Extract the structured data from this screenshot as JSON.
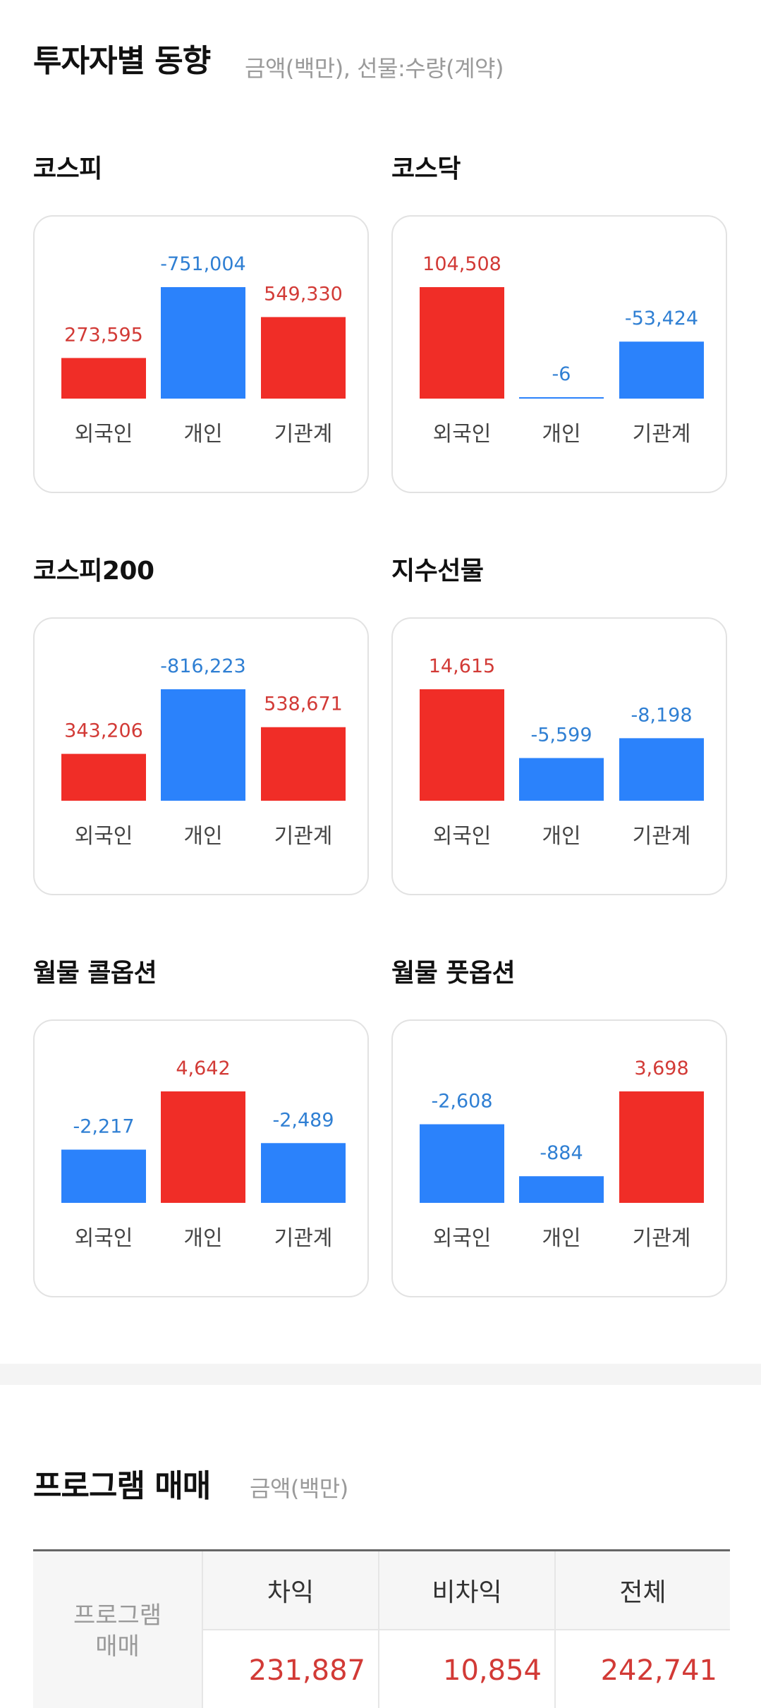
{
  "investor_section": {
    "title": "투자자별 동향",
    "subtitle": "금액(백만), 선물:수량(계약)"
  },
  "colors": {
    "positive": "#f02d27",
    "negative": "#2b82fb",
    "positive_text": "#d23a36",
    "negative_text": "#2f7fd3"
  },
  "investor_labels": [
    "외국인",
    "개인",
    "기관계"
  ],
  "markets": [
    {
      "name": "코스피",
      "values": [
        273595,
        -751004,
        549330
      ],
      "labels": [
        "273,595",
        "-751,004",
        "549,330"
      ]
    },
    {
      "name": "코스닥",
      "values": [
        104508,
        -6,
        -53424
      ],
      "labels": [
        "104,508",
        "-6",
        "-53,424"
      ]
    },
    {
      "name": "코스피200",
      "values": [
        343206,
        -816223,
        538671
      ],
      "labels": [
        "343,206",
        "-816,223",
        "538,671"
      ]
    },
    {
      "name": "지수선물",
      "values": [
        14615,
        -5599,
        -8198
      ],
      "labels": [
        "14,615",
        "-5,599",
        "-8,198"
      ]
    },
    {
      "name": "월물 콜옵션",
      "values": [
        -2217,
        4642,
        -2489
      ],
      "labels": [
        "-2,217",
        "4,642",
        "-2,489"
      ]
    },
    {
      "name": "월물 풋옵션",
      "values": [
        -2608,
        -884,
        3698
      ],
      "labels": [
        "-2,608",
        "-884",
        "3,698"
      ]
    }
  ],
  "program_section": {
    "title": "프로그램 매매",
    "subtitle": "금액(백만)",
    "row_header_line1": "프로그램",
    "row_header_line2": "매매",
    "columns": [
      "차익",
      "비차익",
      "전체"
    ],
    "values": [
      "231,887",
      "10,854",
      "242,741"
    ]
  }
}
